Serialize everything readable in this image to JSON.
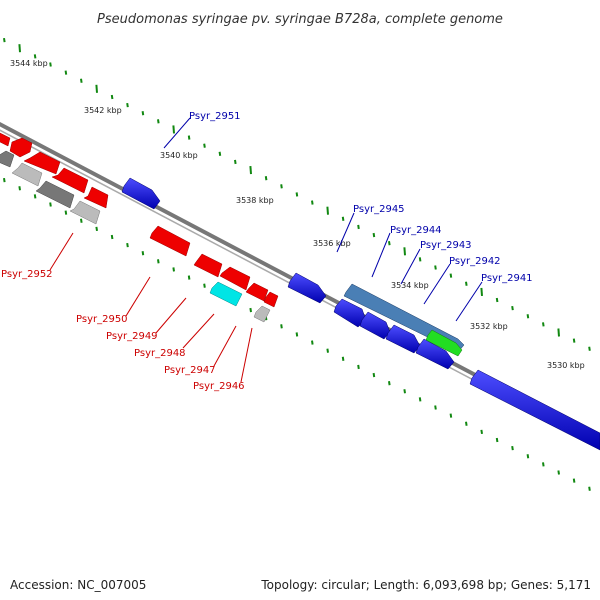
{
  "title": "Pseudomonas syringae pv. syringae B728a, complete genome",
  "footer": {
    "accession": "Accession: NC_007005",
    "summary": "Topology: circular; Length: 6,093,698 bp; Genes: 5,171"
  },
  "ticks": [
    "3544 kbp",
    "3542 kbp",
    "3540 kbp",
    "3538 kbp",
    "3536 kbp",
    "3534 kbp",
    "3532 kbp",
    "3530 kbp"
  ],
  "genes_forward": [
    "Psyr_2951",
    "Psyr_2945",
    "Psyr_2944",
    "Psyr_2943",
    "Psyr_2942",
    "Psyr_2941"
  ],
  "genes_reverse": [
    "Psyr_2952",
    "Psyr_2950",
    "Psyr_2949",
    "Psyr_2948",
    "Psyr_2947",
    "Psyr_2946"
  ],
  "colors": {
    "forward_label": "#0000aa",
    "reverse_label": "#cc0000",
    "forward_gene": "#0000e6",
    "reverse_gene": "#ee0000",
    "cyan_gene": "#00e5e5",
    "green_gene": "#22dd22",
    "steel_gene": "#4a7fb5",
    "gray_gene": "#a0a0a0",
    "tick_mark": "#118811",
    "backbone": "#777777"
  }
}
